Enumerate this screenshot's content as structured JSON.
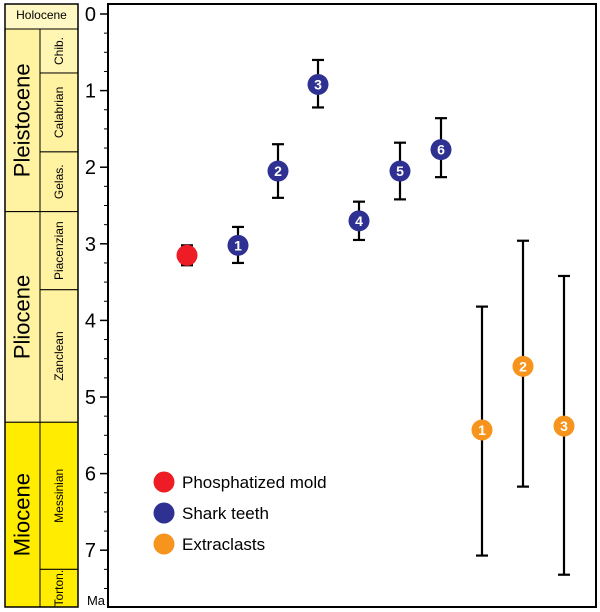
{
  "chart_data": {
    "type": "scatter",
    "ylabel": "Ma",
    "ylim": [
      0,
      7.6
    ],
    "y_ticks": [
      "0",
      "1",
      "2",
      "3",
      "4",
      "5",
      "6",
      "7"
    ],
    "y_tick_values": [
      0,
      1,
      2,
      3,
      4,
      5,
      6,
      7
    ],
    "x_axis": "none",
    "time_scale": {
      "epochs": [
        {
          "name": "Holocene",
          "start": 0,
          "end": 0.0117,
          "color": "#fff8c4"
        },
        {
          "name": "Pleistocene",
          "start": 0.0117,
          "end": 2.58,
          "color": "#fff2a0"
        },
        {
          "name": "Pliocene",
          "start": 2.58,
          "end": 5.33,
          "color": "#fff2a0"
        },
        {
          "name": "Miocene",
          "start": 5.33,
          "end": 7.6,
          "color": "#ffec00"
        }
      ],
      "stages": [
        {
          "name": "Chib.",
          "start": 0.0117,
          "end": 0.77,
          "color": "#fff6b4"
        },
        {
          "name": "Calabrian",
          "start": 0.77,
          "end": 1.8,
          "color": "#fff2a0"
        },
        {
          "name": "Gelas.",
          "start": 1.8,
          "end": 2.58,
          "color": "#fff2a0"
        },
        {
          "name": "Piacenzian",
          "start": 2.58,
          "end": 3.6,
          "color": "#fff2a0"
        },
        {
          "name": "Zanclean",
          "start": 3.6,
          "end": 5.33,
          "color": "#fff2a0"
        },
        {
          "name": "Messinian",
          "start": 5.33,
          "end": 7.25,
          "color": "#ffec00"
        },
        {
          "name": "Torton.",
          "start": 7.25,
          "end": 7.6,
          "color": "#ffec00"
        }
      ]
    },
    "series": [
      {
        "name": "Phosphatized mold",
        "color": "#ee1c24",
        "points": [
          {
            "label": "",
            "x": 1,
            "y": 3.15,
            "low": 3.02,
            "high": 3.28
          }
        ]
      },
      {
        "name": "Shark teeth",
        "color": "#2e3192",
        "points": [
          {
            "label": "1",
            "x": 2,
            "y": 3.02,
            "low": 2.78,
            "high": 3.25
          },
          {
            "label": "2",
            "x": 3,
            "y": 2.05,
            "low": 1.7,
            "high": 2.4
          },
          {
            "label": "3",
            "x": 4,
            "y": 0.92,
            "low": 0.6,
            "high": 1.22
          },
          {
            "label": "4",
            "x": 5,
            "y": 2.7,
            "low": 2.45,
            "high": 2.95
          },
          {
            "label": "5",
            "x": 6,
            "y": 2.05,
            "low": 1.68,
            "high": 2.42
          },
          {
            "label": "6",
            "x": 7,
            "y": 1.77,
            "low": 1.36,
            "high": 2.13
          }
        ]
      },
      {
        "name": "Extraclasts",
        "color": "#f7941d",
        "points": [
          {
            "label": "1",
            "x": 8,
            "y": 5.43,
            "low": 3.82,
            "high": 7.07
          },
          {
            "label": "2",
            "x": 9,
            "y": 4.6,
            "low": 2.96,
            "high": 6.17
          },
          {
            "label": "3",
            "x": 10,
            "y": 5.38,
            "low": 3.42,
            "high": 7.32
          }
        ]
      }
    ],
    "legend": {
      "position": "bottom-left",
      "entries": [
        "Phosphatized mold",
        "Shark teeth",
        "Extraclasts"
      ]
    }
  }
}
